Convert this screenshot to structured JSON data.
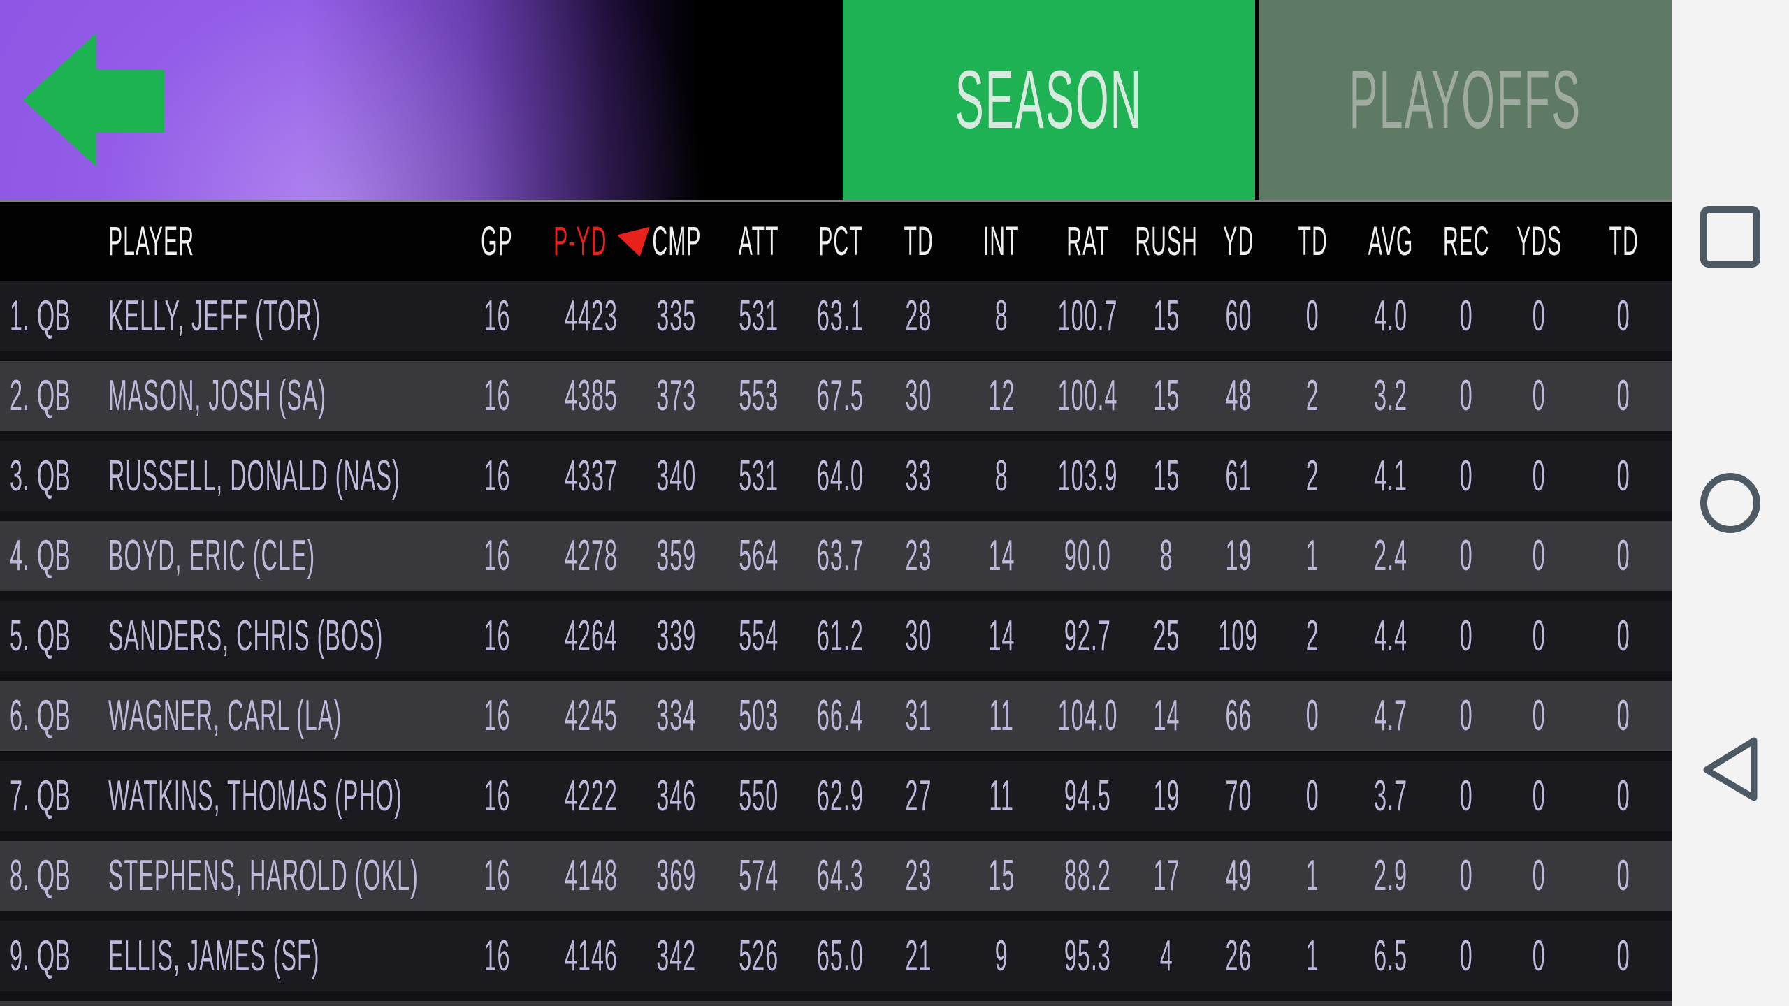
{
  "header": {
    "back_icon": "left-arrow-icon",
    "tabs": {
      "season": {
        "label": "SEASON",
        "active": true
      },
      "playoffs": {
        "label": "PLAYOFFS",
        "active": false
      }
    }
  },
  "colors": {
    "accent_green": "#1fb254",
    "header_purple": "#8d56e4",
    "playoffs_muted_green": "#5e7a65",
    "sort_red": "#e8211b",
    "row_text_lavender": "#bdb9db",
    "row_dark": "#1b1a1e",
    "row_light": "#39383c",
    "navbar_bg": "#f3f3f4",
    "navbar_icon": "#4d5a64"
  },
  "table": {
    "sorted_by": "P-YD",
    "sort_direction": "desc",
    "columns": [
      {
        "key": "rank",
        "label": "",
        "align": "l"
      },
      {
        "key": "player",
        "label": "PLAYER",
        "align": "l"
      },
      {
        "key": "gp",
        "label": "GP",
        "align": "c"
      },
      {
        "key": "pyd",
        "label": "P-YD",
        "align": "c",
        "sorted": true
      },
      {
        "key": "cmp",
        "label": "CMP",
        "align": "c"
      },
      {
        "key": "att",
        "label": "ATT",
        "align": "c"
      },
      {
        "key": "pct",
        "label": "PCT",
        "align": "c"
      },
      {
        "key": "td",
        "label": "TD",
        "align": "c"
      },
      {
        "key": "int",
        "label": "INT",
        "align": "c"
      },
      {
        "key": "rat",
        "label": "RAT",
        "align": "c"
      },
      {
        "key": "rush",
        "label": "RUSH",
        "align": "c"
      },
      {
        "key": "yd",
        "label": "YD",
        "align": "c"
      },
      {
        "key": "td2",
        "label": "TD",
        "align": "c"
      },
      {
        "key": "avg",
        "label": "AVG",
        "align": "c"
      },
      {
        "key": "rec",
        "label": "REC",
        "align": "c"
      },
      {
        "key": "yds",
        "label": "YDS",
        "align": "c"
      },
      {
        "key": "td3",
        "label": "TD",
        "align": "c"
      }
    ],
    "rows": [
      {
        "rank": "1. QB",
        "player": "KELLY, JEFF (TOR)",
        "gp": "16",
        "pyd": "4423",
        "cmp": "335",
        "att": "531",
        "pct": "63.1",
        "td": "28",
        "int": "8",
        "rat": "100.7",
        "rush": "15",
        "yd": "60",
        "td2": "0",
        "avg": "4.0",
        "rec": "0",
        "yds": "0",
        "td3": "0"
      },
      {
        "rank": "2. QB",
        "player": "MASON, JOSH (SA)",
        "gp": "16",
        "pyd": "4385",
        "cmp": "373",
        "att": "553",
        "pct": "67.5",
        "td": "30",
        "int": "12",
        "rat": "100.4",
        "rush": "15",
        "yd": "48",
        "td2": "2",
        "avg": "3.2",
        "rec": "0",
        "yds": "0",
        "td3": "0"
      },
      {
        "rank": "3. QB",
        "player": "RUSSELL, DONALD (NAS)",
        "gp": "16",
        "pyd": "4337",
        "cmp": "340",
        "att": "531",
        "pct": "64.0",
        "td": "33",
        "int": "8",
        "rat": "103.9",
        "rush": "15",
        "yd": "61",
        "td2": "2",
        "avg": "4.1",
        "rec": "0",
        "yds": "0",
        "td3": "0"
      },
      {
        "rank": "4. QB",
        "player": "BOYD, ERIC (CLE)",
        "gp": "16",
        "pyd": "4278",
        "cmp": "359",
        "att": "564",
        "pct": "63.7",
        "td": "23",
        "int": "14",
        "rat": "90.0",
        "rush": "8",
        "yd": "19",
        "td2": "1",
        "avg": "2.4",
        "rec": "0",
        "yds": "0",
        "td3": "0"
      },
      {
        "rank": "5. QB",
        "player": "SANDERS, CHRIS (BOS)",
        "gp": "16",
        "pyd": "4264",
        "cmp": "339",
        "att": "554",
        "pct": "61.2",
        "td": "30",
        "int": "14",
        "rat": "92.7",
        "rush": "25",
        "yd": "109",
        "td2": "2",
        "avg": "4.4",
        "rec": "0",
        "yds": "0",
        "td3": "0"
      },
      {
        "rank": "6. QB",
        "player": "WAGNER, CARL (LA)",
        "gp": "16",
        "pyd": "4245",
        "cmp": "334",
        "att": "503",
        "pct": "66.4",
        "td": "31",
        "int": "11",
        "rat": "104.0",
        "rush": "14",
        "yd": "66",
        "td2": "0",
        "avg": "4.7",
        "rec": "0",
        "yds": "0",
        "td3": "0"
      },
      {
        "rank": "7. QB",
        "player": "WATKINS, THOMAS (PHO)",
        "gp": "16",
        "pyd": "4222",
        "cmp": "346",
        "att": "550",
        "pct": "62.9",
        "td": "27",
        "int": "11",
        "rat": "94.5",
        "rush": "19",
        "yd": "70",
        "td2": "0",
        "avg": "3.7",
        "rec": "0",
        "yds": "0",
        "td3": "0"
      },
      {
        "rank": "8. QB",
        "player": "STEPHENS, HAROLD (OKL)",
        "gp": "16",
        "pyd": "4148",
        "cmp": "369",
        "att": "574",
        "pct": "64.3",
        "td": "23",
        "int": "15",
        "rat": "88.2",
        "rush": "17",
        "yd": "49",
        "td2": "1",
        "avg": "2.9",
        "rec": "0",
        "yds": "0",
        "td3": "0"
      },
      {
        "rank": "9. QB",
        "player": "ELLIS, JAMES (SF)",
        "gp": "16",
        "pyd": "4146",
        "cmp": "342",
        "att": "526",
        "pct": "65.0",
        "td": "21",
        "int": "9",
        "rat": "95.3",
        "rush": "4",
        "yd": "26",
        "td2": "1",
        "avg": "6.5",
        "rec": "0",
        "yds": "0",
        "td3": "0"
      }
    ]
  },
  "navbar": {
    "buttons": [
      {
        "name": "recents",
        "icon": "square-icon"
      },
      {
        "name": "home",
        "icon": "circle-icon"
      },
      {
        "name": "back",
        "icon": "triangle-icon"
      }
    ]
  }
}
